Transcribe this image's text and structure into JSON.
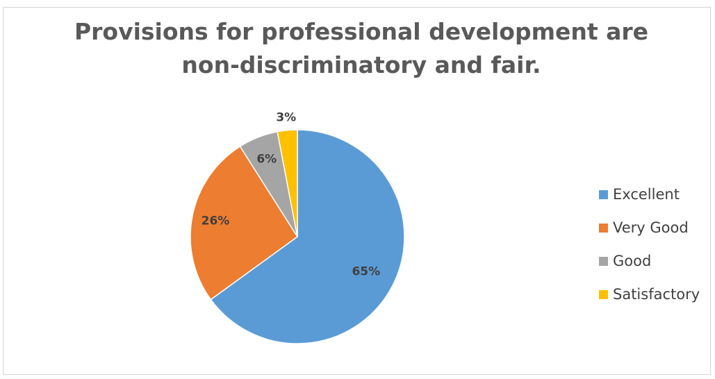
{
  "chart_data": {
    "type": "pie",
    "title_lines": [
      "Provisions for professional development are",
      "non-discriminatory and fair."
    ],
    "categories": [
      "Excellent",
      "Very Good",
      "Good",
      "Satisfactory"
    ],
    "values": [
      65,
      26,
      6,
      3
    ],
    "data_labels": [
      "65%",
      "26%",
      "6%",
      "3%"
    ],
    "colors": [
      "#5B9BD5",
      "#ED7D31",
      "#A5A5A5",
      "#FFC000"
    ],
    "legend_position": "right"
  }
}
